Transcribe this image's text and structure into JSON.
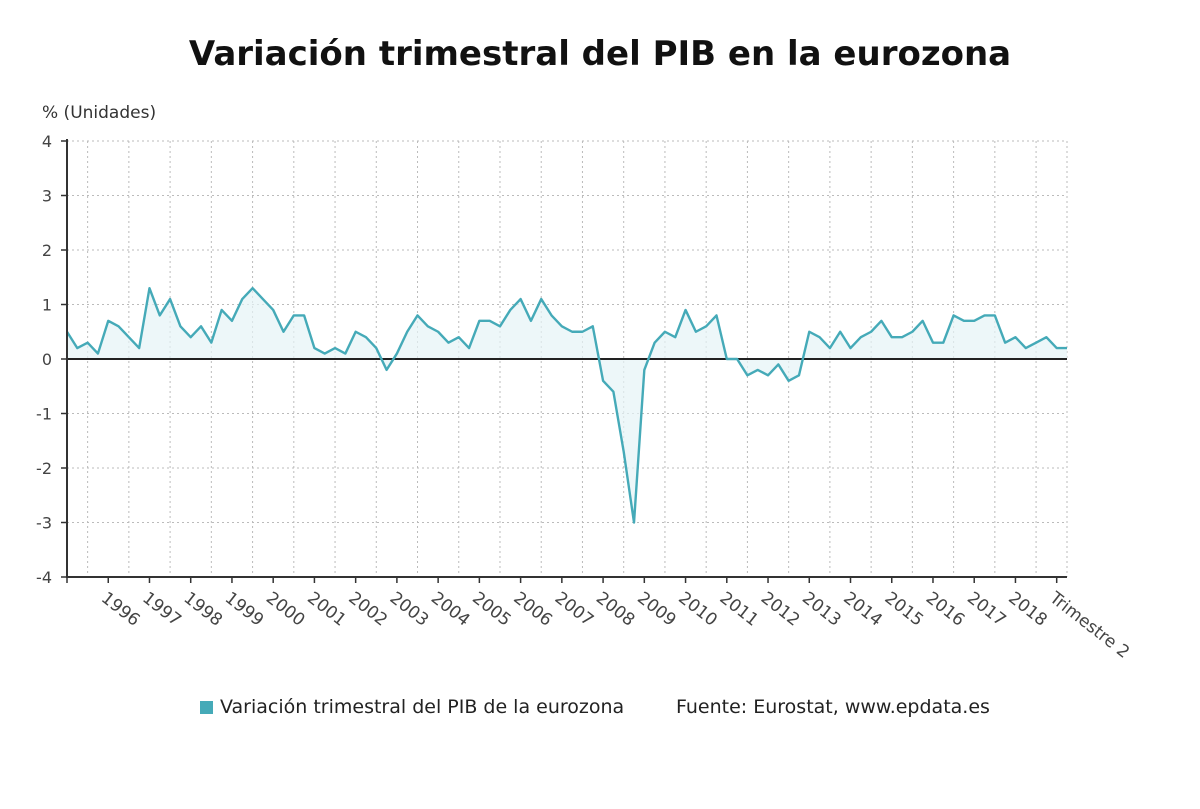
{
  "title": "Variación trimestral del PIB en la eurozona",
  "ylabel": "% (Unidades)",
  "source": "Fuente: Eurostat, www.epdata.es",
  "colors": {
    "series": "#45aab8",
    "fill": "#e6f4f7",
    "zero": "#222222",
    "grid": "#bbbbbb"
  },
  "chart_data": {
    "type": "area",
    "title": "Variación trimestral del PIB en la eurozona",
    "ylabel": "% (Unidades)",
    "xlabel": "",
    "ylim": [
      -4,
      4
    ],
    "yticks": [
      -4,
      -3,
      -2,
      -1,
      0,
      1,
      2,
      3,
      4
    ],
    "grid": true,
    "legend": "bottom",
    "x_tick_labels": [
      "1996",
      "1997",
      "1998",
      "1999",
      "2000",
      "2001",
      "2002",
      "2003",
      "2004",
      "2005",
      "2006",
      "2007",
      "2008",
      "2009",
      "2010",
      "2011",
      "2012",
      "2013",
      "2014",
      "2015",
      "2016",
      "2017",
      "2018",
      "Trimestre 2"
    ],
    "x_label_positions": [
      4,
      8,
      12,
      16,
      20,
      24,
      28,
      32,
      36,
      40,
      44,
      48,
      52,
      56,
      60,
      64,
      68,
      72,
      76,
      80,
      84,
      88,
      92,
      96
    ],
    "series": [
      {
        "name": "Variación trimestral del PIB de la eurozona",
        "values": [
          0.5,
          0.2,
          0.3,
          0.1,
          0.7,
          0.6,
          0.4,
          0.2,
          1.3,
          0.8,
          1.1,
          0.6,
          0.4,
          0.6,
          0.3,
          0.9,
          0.7,
          1.1,
          1.3,
          1.1,
          0.9,
          0.5,
          0.8,
          0.8,
          0.2,
          0.1,
          0.2,
          0.1,
          0.5,
          0.4,
          0.2,
          -0.2,
          0.1,
          0.5,
          0.8,
          0.6,
          0.5,
          0.3,
          0.4,
          0.2,
          0.7,
          0.7,
          0.6,
          0.9,
          1.1,
          0.7,
          1.1,
          0.8,
          0.6,
          0.5,
          0.5,
          0.6,
          -0.4,
          -0.6,
          -1.7,
          -3.0,
          -0.2,
          0.3,
          0.5,
          0.4,
          0.9,
          0.5,
          0.6,
          0.8,
          0.0,
          0.0,
          -0.3,
          -0.2,
          -0.3,
          -0.1,
          -0.4,
          -0.3,
          0.5,
          0.4,
          0.2,
          0.5,
          0.2,
          0.4,
          0.5,
          0.7,
          0.4,
          0.4,
          0.5,
          0.7,
          0.3,
          0.3,
          0.8,
          0.7,
          0.7,
          0.8,
          0.8,
          0.3,
          0.4,
          0.2,
          0.3,
          0.4,
          0.2,
          0.2
        ]
      }
    ]
  }
}
